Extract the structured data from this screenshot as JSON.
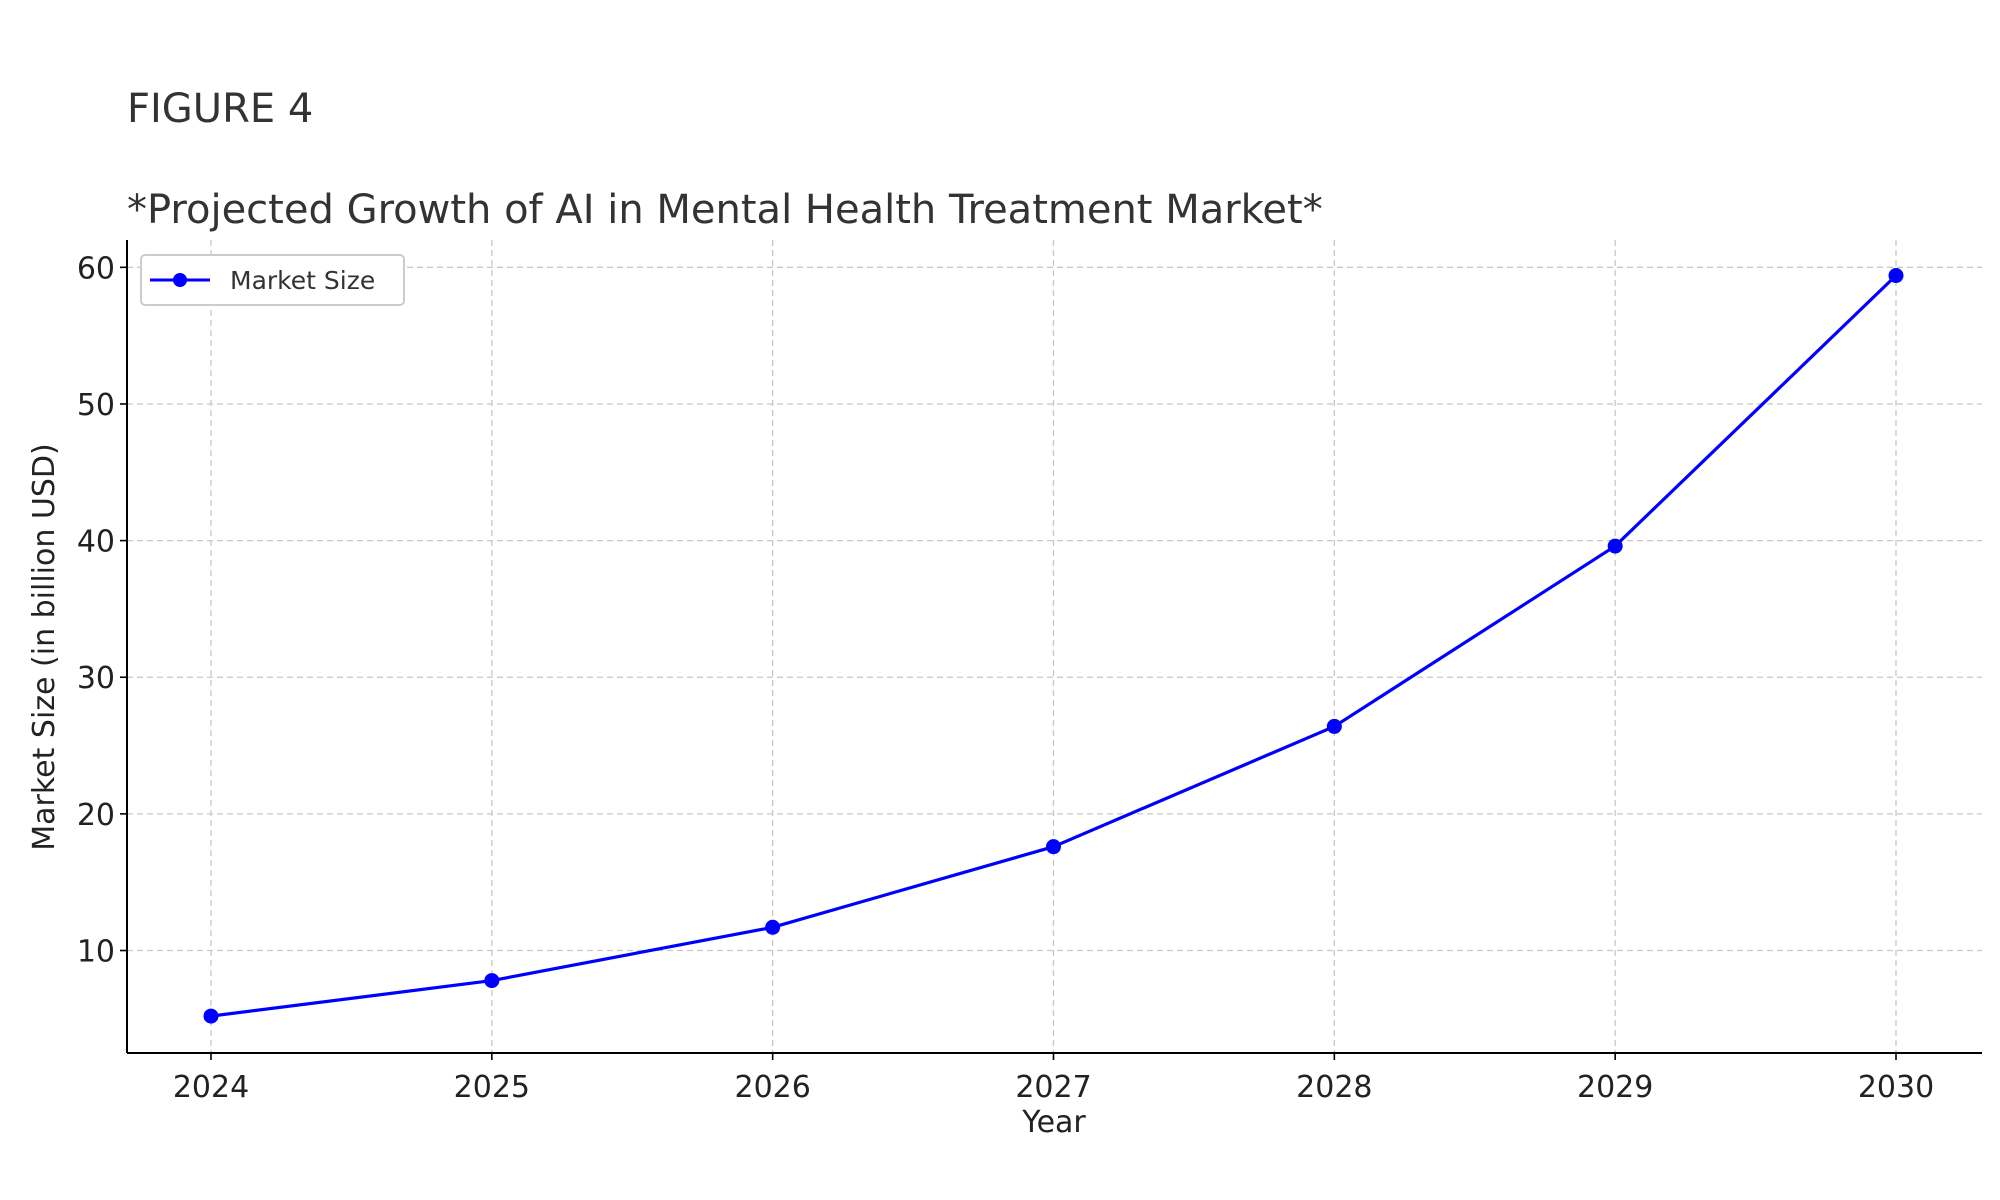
{
  "figure_label": "FIGURE 4",
  "chart_data": {
    "type": "line",
    "title": "*Projected Growth of AI in Mental Health Treatment Market*",
    "xlabel": "Year",
    "ylabel": "Market Size (in billion USD)",
    "categories": [
      "2024",
      "2025",
      "2026",
      "2027",
      "2028",
      "2029",
      "2030"
    ],
    "series": [
      {
        "name": "Market Size",
        "color": "#0000ff",
        "values": [
          5.2,
          7.8,
          11.7,
          17.6,
          26.4,
          39.6,
          59.4
        ]
      }
    ],
    "yticks": [
      10,
      20,
      30,
      40,
      50,
      60
    ],
    "ylim": [
      2.5,
      62.0
    ],
    "grid": true,
    "legend": "top-left"
  }
}
